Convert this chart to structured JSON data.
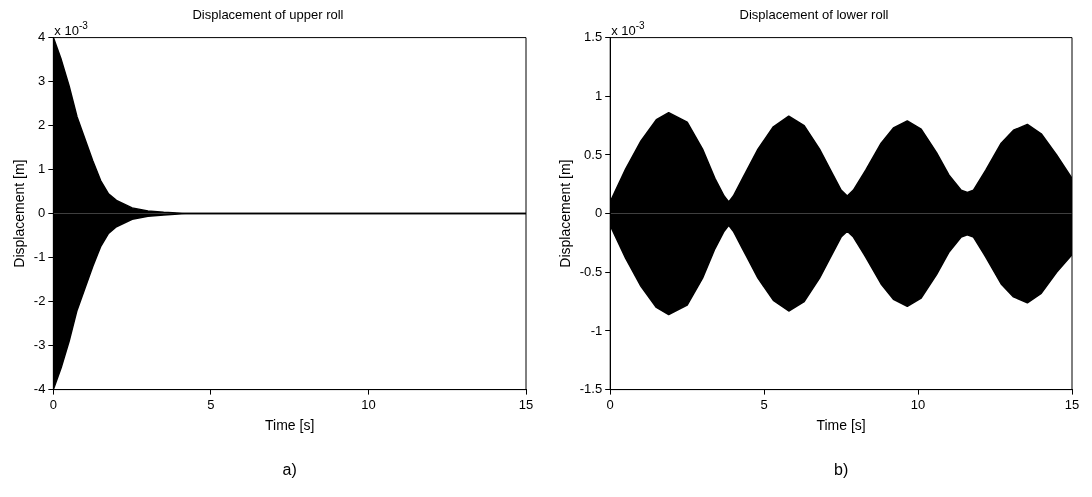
{
  "chart_data": [
    {
      "type": "area",
      "title": "Displacement of upper roll",
      "xlabel": "Time [s]",
      "ylabel": "Displacement [m]",
      "annotations": [
        "x 10$^{-3}$",
        "a)"
      ],
      "x": [
        0,
        0.25,
        0.5,
        0.75,
        1,
        1.25,
        1.5,
        1.75,
        2,
        2.5,
        3,
        3.5,
        4.2,
        15
      ],
      "xlim": [
        0,
        15
      ],
      "xticks": [
        0,
        5,
        10,
        15
      ],
      "ylim": [
        -4,
        4
      ],
      "yticks": [
        -4,
        -3,
        -2,
        -1,
        0,
        1,
        2,
        3,
        4
      ],
      "grid": false,
      "legend": false,
      "marker": "none",
      "line_style": "solid",
      "series": [
        {
          "color": "#000000",
          "values": [
            4,
            3.5,
            2.9,
            2.2,
            1.7,
            1.2,
            0.75,
            0.45,
            0.3,
            0.13,
            0.06,
            0.03,
            0,
            0
          ]
        },
        {
          "color": "#000000",
          "values": [
            -4,
            -3.5,
            -2.9,
            -2.2,
            -1.7,
            -1.2,
            -0.75,
            -0.45,
            -0.3,
            -0.13,
            -0.06,
            -0.03,
            0,
            0
          ]
        }
      ]
    },
    {
      "type": "area",
      "title": "Displacement of lower roll",
      "xlabel": "Time [s]",
      "ylabel": "Displacement [m]",
      "annotations": [
        "x 10$^{-3}$",
        "b)"
      ],
      "x": [
        0,
        0.5,
        1,
        1.5,
        1.9,
        2.5,
        3,
        3.4,
        3.7,
        3.85,
        4,
        4.3,
        4.8,
        5.3,
        5.8,
        6.3,
        6.8,
        7.2,
        7.5,
        7.7,
        7.9,
        8.3,
        8.8,
        9.2,
        9.65,
        10.1,
        10.6,
        11,
        11.4,
        11.6,
        11.8,
        12.2,
        12.7,
        13.1,
        13.55,
        14,
        14.5,
        15
      ],
      "xlim": [
        0,
        15
      ],
      "xticks": [
        0,
        5,
        10,
        15
      ],
      "ylim": [
        -1.5,
        1.5
      ],
      "yticks": [
        -1.5,
        -1,
        -0.5,
        0,
        0.5,
        1,
        1.5
      ],
      "grid": false,
      "legend": false,
      "marker": "none",
      "line_style": "solid",
      "series": [
        {
          "color": "#000000",
          "values": [
            0.1,
            0.38,
            0.62,
            0.8,
            0.86,
            0.78,
            0.55,
            0.3,
            0.15,
            0.1,
            0.15,
            0.3,
            0.55,
            0.74,
            0.83,
            0.75,
            0.55,
            0.35,
            0.2,
            0.15,
            0.2,
            0.37,
            0.6,
            0.73,
            0.79,
            0.72,
            0.52,
            0.33,
            0.2,
            0.18,
            0.2,
            0.37,
            0.6,
            0.71,
            0.76,
            0.68,
            0.5,
            0.3
          ]
        },
        {
          "color": "#000000",
          "values": [
            -0.1,
            -0.38,
            -0.62,
            -0.8,
            -0.86,
            -0.78,
            -0.55,
            -0.3,
            -0.15,
            -0.1,
            -0.15,
            -0.3,
            -0.55,
            -0.74,
            -0.83,
            -0.75,
            -0.55,
            -0.35,
            -0.2,
            -0.15,
            -0.2,
            -0.37,
            -0.6,
            -0.73,
            -0.79,
            -0.72,
            -0.52,
            -0.33,
            -0.2,
            -0.18,
            -0.2,
            -0.37,
            -0.6,
            -0.71,
            -0.76,
            -0.68,
            -0.5,
            -0.35
          ]
        }
      ]
    }
  ]
}
